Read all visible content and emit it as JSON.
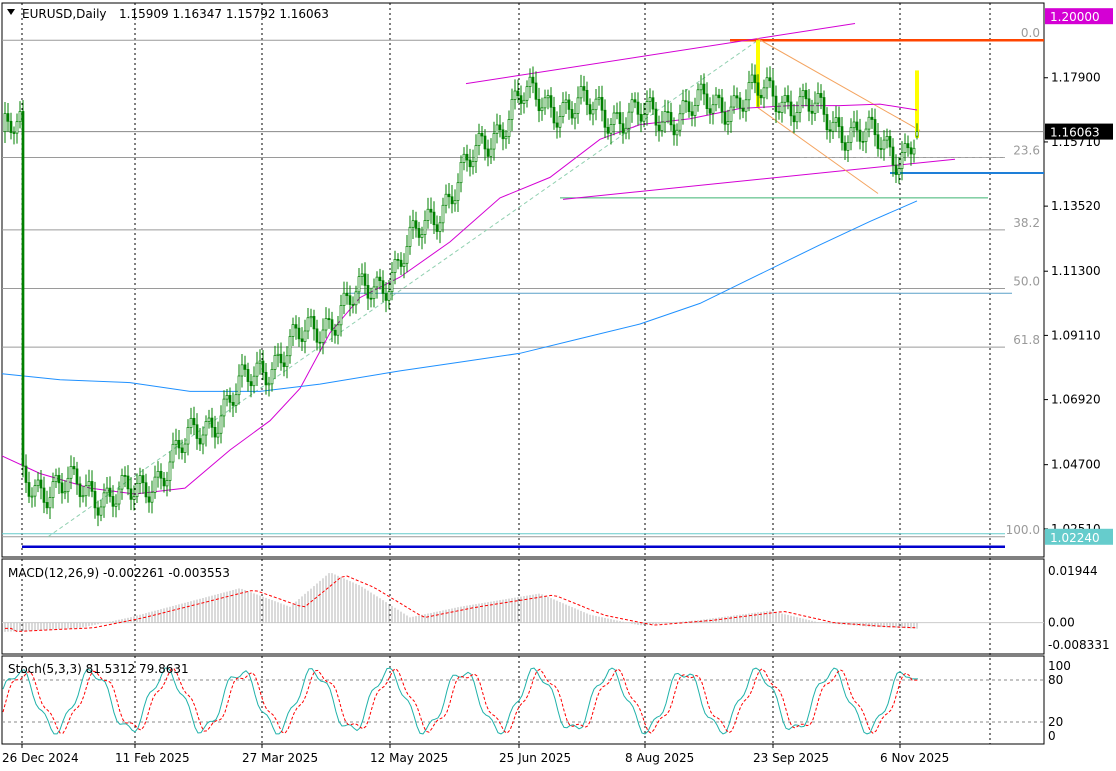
{
  "header": {
    "symbol_timeframe": "EURUSD,Daily",
    "ohlc": "1.15909 1.16347 1.15792 1.16063"
  },
  "colors": {
    "candle": "#008000",
    "ma_fast": "#d400d4",
    "ma_slow": "#1e90ff",
    "resistance": "#ff4500",
    "support": "#0000cd",
    "highlight": "#ffff00",
    "macd_hist": "#c0c0c0",
    "signal": "#ff0000",
    "stoch_main": "#20b2aa"
  },
  "chart_data": [
    {
      "type": "candlestick",
      "symbol": "EURUSD",
      "timeframe": "Daily",
      "last_ohlc": {
        "open": 1.15909,
        "high": 1.16347,
        "low": 1.15792,
        "close": 1.16063
      },
      "current_price_label": "1.16063",
      "y_range": [
        1.0155,
        1.2045
      ],
      "y_ticks": [
        "1.17900",
        "1.15710",
        "1.13520",
        "1.11300",
        "1.09110",
        "1.06920",
        "1.04700",
        "1.02510"
      ],
      "x_labels": [
        "26 Dec 2024",
        "11 Feb 2025",
        "27 Mar 2025",
        "12 May 2025",
        "25 Jun 2025",
        "8 Aug 2025",
        "23 Sep 2025",
        "6 Nov 2025"
      ],
      "grid": true,
      "price_tags": [
        "1.20000",
        "1.02240"
      ],
      "fibonacci": {
        "low": 1.0224,
        "high": 1.1918,
        "levels": [
          {
            "label": "0.0",
            "value": 1.1918
          },
          {
            "label": "23.6",
            "value": 1.1518
          },
          {
            "label": "38.2",
            "value": 1.1271
          },
          {
            "label": "50.0",
            "value": 1.1071
          },
          {
            "label": "61.8",
            "value": 1.0871
          },
          {
            "label": "100.0",
            "value": 1.0224
          }
        ]
      },
      "close_path": [
        [
          "26 Dec 2024",
          1.041
        ],
        [
          "11 Feb 2025",
          1.036
        ],
        [
          "27 Mar 2025",
          1.08
        ],
        [
          "12 May 2025",
          1.112
        ],
        [
          "25 Jun 2025",
          1.172
        ],
        [
          "8 Aug 2025",
          1.165
        ],
        [
          "23 Sep 2025",
          1.174
        ],
        [
          "6 Nov 2025",
          1.153
        ],
        [
          "last",
          1.16063
        ]
      ]
    },
    {
      "type": "line",
      "title": "MACD(12,26,9) -0.002261 -0.003553",
      "y_ticks": [
        "0.01944",
        "0.00",
        "-0.008331"
      ],
      "y_range": [
        -0.0118,
        0.024
      ],
      "last": {
        "macd": -0.002261,
        "signal": -0.003553
      }
    },
    {
      "type": "line",
      "title": "Stoch(5,3,3) 81.5312 79.8631",
      "y_ticks": [
        "100",
        "80",
        "20",
        "0"
      ],
      "y_range": [
        0,
        100
      ],
      "last": {
        "main": 81.5312,
        "signal": 79.8631
      }
    }
  ]
}
